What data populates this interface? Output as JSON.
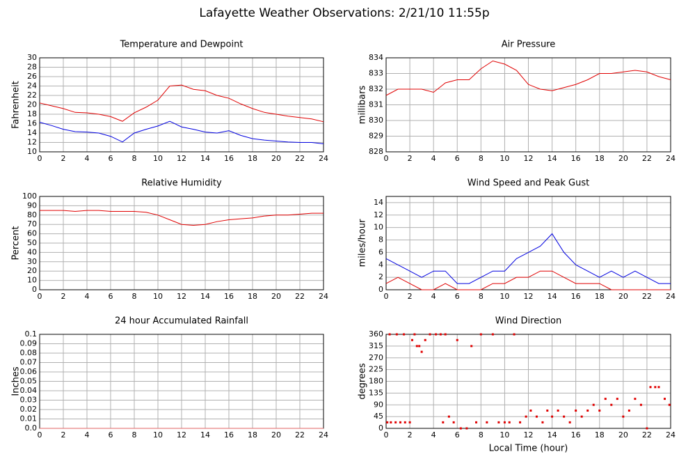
{
  "title": "Lafayette Weather Observations: 2/21/10 11:55p",
  "chart_data": [
    {
      "type": "line",
      "title": "Temperature and Dewpoint",
      "ylabel": "Fahrenheit",
      "x": [
        0,
        1,
        2,
        3,
        4,
        5,
        6,
        7,
        8,
        9,
        10,
        11,
        12,
        13,
        14,
        15,
        16,
        17,
        18,
        19,
        20,
        21,
        22,
        23,
        24
      ],
      "series": [
        {
          "color": "#e00000",
          "values": [
            20.4,
            19.8,
            19.2,
            18.4,
            18.3,
            18.0,
            17.5,
            16.5,
            18.3,
            19.5,
            21,
            24,
            24.2,
            23.3,
            23,
            22,
            21.4,
            20.2,
            19.2,
            18.4,
            18,
            17.6,
            17.3,
            17,
            16.4
          ]
        },
        {
          "color": "#0000e0",
          "values": [
            16.3,
            15.6,
            14.8,
            14.3,
            14.2,
            14,
            13.3,
            12.1,
            14,
            14.8,
            15.5,
            16.5,
            15.3,
            14.8,
            14.2,
            14,
            14.5,
            13.5,
            12.8,
            12.5,
            12.3,
            12.1,
            12,
            12,
            11.7
          ]
        }
      ],
      "xlim": [
        0,
        24
      ],
      "xticks": [
        0,
        2,
        4,
        6,
        8,
        10,
        12,
        14,
        16,
        18,
        20,
        22,
        24
      ],
      "ylim": [
        10,
        30
      ],
      "yticks": [
        10,
        12,
        14,
        16,
        18,
        20,
        22,
        24,
        26,
        28,
        30
      ],
      "grid": true
    },
    {
      "type": "line",
      "title": "Air Pressure",
      "ylabel": "millibars",
      "x": [
        0,
        1,
        2,
        3,
        4,
        5,
        6,
        7,
        8,
        9,
        10,
        11,
        12,
        13,
        14,
        15,
        16,
        17,
        18,
        19,
        20,
        21,
        22,
        23,
        24
      ],
      "series": [
        {
          "color": "#e00000",
          "values": [
            831.6,
            832,
            832,
            832,
            831.8,
            832.4,
            832.6,
            832.6,
            833.3,
            833.8,
            833.6,
            833.2,
            832.3,
            832,
            831.9,
            832.1,
            832.3,
            832.6,
            833,
            833,
            833.1,
            833.2,
            833.1,
            832.8,
            832.6
          ]
        }
      ],
      "xlim": [
        0,
        24
      ],
      "xticks": [
        0,
        2,
        4,
        6,
        8,
        10,
        12,
        14,
        16,
        18,
        20,
        22,
        24
      ],
      "ylim": [
        828,
        834
      ],
      "yticks": [
        828,
        829,
        830,
        831,
        832,
        833,
        834
      ],
      "grid": true
    },
    {
      "type": "line",
      "title": "Relative Humidity",
      "ylabel": "Percent",
      "x": [
        0,
        1,
        2,
        3,
        4,
        5,
        6,
        7,
        8,
        9,
        10,
        11,
        12,
        13,
        14,
        15,
        16,
        17,
        18,
        19,
        20,
        21,
        22,
        23,
        24
      ],
      "series": [
        {
          "color": "#e00000",
          "values": [
            85,
            85,
            85,
            84,
            85,
            85,
            84,
            84,
            84,
            83,
            80,
            75,
            70,
            69,
            70,
            73,
            75,
            76,
            77,
            79,
            80,
            80,
            81,
            82,
            82
          ]
        }
      ],
      "xlim": [
        0,
        24
      ],
      "xticks": [
        0,
        2,
        4,
        6,
        8,
        10,
        12,
        14,
        16,
        18,
        20,
        22,
        24
      ],
      "ylim": [
        0,
        100
      ],
      "yticks": [
        0,
        10,
        20,
        30,
        40,
        50,
        60,
        70,
        80,
        90,
        100
      ],
      "grid": true
    },
    {
      "type": "line",
      "title": "Wind Speed and Peak Gust",
      "ylabel": "miles/hour",
      "x": [
        0,
        1,
        2,
        3,
        4,
        5,
        6,
        7,
        8,
        9,
        10,
        11,
        12,
        13,
        14,
        15,
        16,
        17,
        18,
        19,
        20,
        21,
        22,
        23,
        24
      ],
      "series": [
        {
          "color": "#0000e0",
          "values": [
            5,
            4,
            3,
            2,
            3,
            3,
            1,
            1,
            2,
            3,
            3,
            5,
            6,
            7,
            9,
            6,
            4,
            3,
            2,
            3,
            2,
            3,
            2,
            1,
            1
          ]
        },
        {
          "color": "#e00000",
          "values": [
            1,
            2,
            1,
            0,
            0,
            1,
            0,
            0,
            0,
            1,
            1,
            2,
            2,
            3,
            3,
            2,
            1,
            1,
            1,
            0,
            0,
            0,
            0,
            0,
            0
          ]
        }
      ],
      "xlim": [
        0,
        24
      ],
      "xticks": [
        0,
        2,
        4,
        6,
        8,
        10,
        12,
        14,
        16,
        18,
        20,
        22,
        24
      ],
      "ylim": [
        0,
        15
      ],
      "yticks": [
        0,
        2,
        4,
        6,
        8,
        10,
        12,
        14
      ],
      "grid": true
    },
    {
      "type": "line",
      "title": "24 hour Accumulated Rainfall",
      "ylabel": "Inches",
      "x": [
        0,
        24
      ],
      "series": [
        {
          "color": "#e06060",
          "values": [
            0,
            0
          ]
        }
      ],
      "xlim": [
        0,
        24
      ],
      "xticks": [
        0,
        2,
        4,
        6,
        8,
        10,
        12,
        14,
        16,
        18,
        20,
        22,
        24
      ],
      "ylim": [
        0,
        0.1
      ],
      "yticks": [
        {
          "value": 0,
          "label": "0.0"
        },
        0.01,
        0.02,
        0.03,
        0.04,
        0.05,
        0.06,
        0.07,
        0.08,
        0.09,
        0.1
      ],
      "grid": true
    },
    {
      "type": "scatter",
      "title": "Wind Direction",
      "ylabel": "degrees",
      "xlabel": "Local Time (hour)",
      "x": [
        0.1,
        0.4,
        0.8,
        1.2,
        1.6,
        2,
        0.3,
        0.9,
        1.5,
        2.2,
        2.6,
        3,
        2.4,
        2.8,
        3.3,
        3.7,
        4.2,
        4.6,
        5,
        4.8,
        5.3,
        5.7,
        6,
        6.3,
        6.8,
        7.2,
        7.6,
        8,
        8.5,
        9,
        9.5,
        10,
        10.4,
        10.8,
        11.3,
        11.8,
        12.2,
        12.7,
        13.2,
        13.6,
        14,
        14.5,
        15,
        15.5,
        16,
        16.5,
        17,
        17.5,
        18,
        18.5,
        19,
        19.5,
        20,
        20.5,
        21,
        21.5,
        22,
        22.3,
        22.7,
        23,
        23.5,
        23.9
      ],
      "series": [
        {
          "color": "#e00000",
          "values": [
            23,
            23,
            23,
            23,
            23,
            23,
            360,
            360,
            360,
            338,
            315,
            293,
            360,
            315,
            338,
            360,
            360,
            360,
            360,
            23,
            45,
            23,
            338,
            0,
            0,
            315,
            23,
            360,
            23,
            360,
            23,
            23,
            23,
            360,
            23,
            45,
            68,
            45,
            23,
            68,
            45,
            68,
            45,
            23,
            68,
            45,
            68,
            90,
            68,
            113,
            90,
            113,
            45,
            68,
            113,
            90,
            0,
            158,
            158,
            158,
            113,
            90
          ]
        }
      ],
      "xlim": [
        0,
        24
      ],
      "xticks": [
        0,
        2,
        4,
        6,
        8,
        10,
        12,
        14,
        16,
        18,
        20,
        22,
        24
      ],
      "ylim": [
        0,
        360
      ],
      "yticks": [
        0,
        45,
        90,
        135,
        180,
        225,
        270,
        315,
        360
      ],
      "grid": true
    }
  ]
}
